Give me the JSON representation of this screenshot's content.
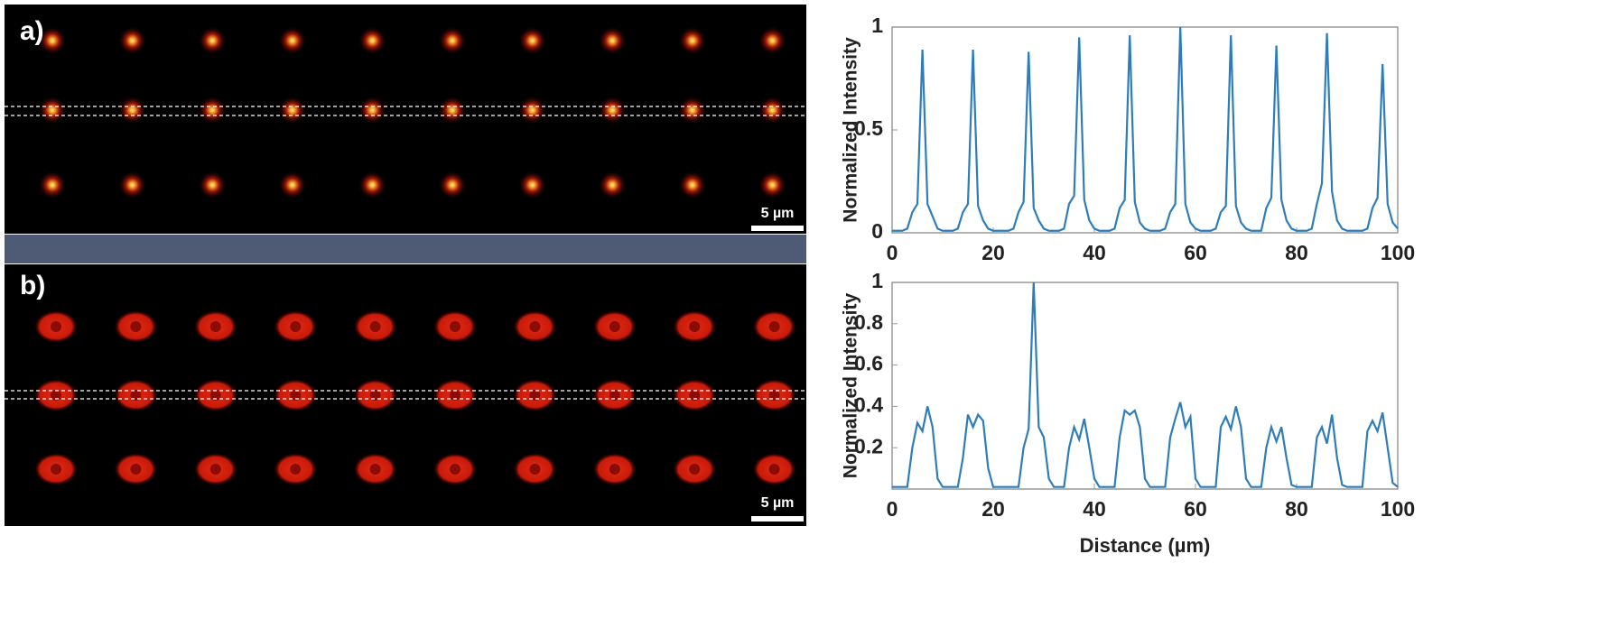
{
  "panels": [
    {
      "label": "a)",
      "scale_bar": "5 µm"
    },
    {
      "label": "b)",
      "scale_bar": "5 µm"
    }
  ],
  "chart_data": [
    {
      "type": "line",
      "ylabel": "Normalized Intensity",
      "color": "#2f7db8",
      "xlim": [
        0,
        100
      ],
      "xticks": [
        0,
        20,
        40,
        60,
        80,
        100
      ],
      "ylim": [
        0,
        1
      ],
      "yticks": [
        0,
        0.5,
        1
      ],
      "x": [
        0,
        1,
        2,
        3,
        4,
        5,
        6,
        7,
        8,
        9,
        10,
        11,
        12,
        13,
        14,
        15,
        16,
        17,
        18,
        19,
        20,
        21,
        22,
        23,
        24,
        25,
        26,
        27,
        28,
        29,
        30,
        31,
        32,
        33,
        34,
        35,
        36,
        37,
        38,
        39,
        40,
        41,
        42,
        43,
        44,
        45,
        46,
        47,
        48,
        49,
        50,
        51,
        52,
        53,
        54,
        55,
        56,
        57,
        58,
        59,
        60,
        61,
        62,
        63,
        64,
        65,
        66,
        67,
        68,
        69,
        70,
        71,
        72,
        73,
        74,
        75,
        76,
        77,
        78,
        79,
        80,
        81,
        82,
        83,
        84,
        85,
        86,
        87,
        88,
        89,
        90,
        91,
        92,
        93,
        94,
        95,
        96,
        97,
        98,
        99,
        100
      ],
      "values": [
        0.01,
        0.01,
        0.01,
        0.02,
        0.1,
        0.14,
        0.89,
        0.14,
        0.08,
        0.02,
        0.01,
        0.01,
        0.01,
        0.02,
        0.1,
        0.14,
        0.89,
        0.13,
        0.06,
        0.02,
        0.01,
        0.01,
        0.01,
        0.01,
        0.02,
        0.1,
        0.15,
        0.88,
        0.12,
        0.06,
        0.02,
        0.01,
        0.01,
        0.01,
        0.02,
        0.14,
        0.18,
        0.95,
        0.16,
        0.06,
        0.02,
        0.01,
        0.01,
        0.01,
        0.02,
        0.12,
        0.16,
        0.96,
        0.15,
        0.05,
        0.02,
        0.01,
        0.01,
        0.01,
        0.02,
        0.1,
        0.14,
        1,
        0.14,
        0.05,
        0.02,
        0.01,
        0.01,
        0.01,
        0.02,
        0.1,
        0.13,
        0.96,
        0.13,
        0.05,
        0.02,
        0.01,
        0.01,
        0.01,
        0.12,
        0.17,
        0.91,
        0.16,
        0.06,
        0.02,
        0.01,
        0.01,
        0.01,
        0.02,
        0.14,
        0.24,
        0.97,
        0.2,
        0.06,
        0.02,
        0.01,
        0.01,
        0.01,
        0.01,
        0.02,
        0.12,
        0.17,
        0.82,
        0.14,
        0.05,
        0.02
      ]
    },
    {
      "type": "line",
      "ylabel": "Normalized Intensity",
      "xlabel": "Distance (µm)",
      "color": "#2f7db8",
      "xlim": [
        0,
        100
      ],
      "xticks": [
        0,
        20,
        40,
        60,
        80,
        100
      ],
      "ylim": [
        0,
        1
      ],
      "yticks": [
        0.2,
        0.4,
        0.6,
        0.8,
        1
      ],
      "x": [
        0,
        1,
        2,
        3,
        4,
        5,
        6,
        7,
        8,
        9,
        10,
        11,
        12,
        13,
        14,
        15,
        16,
        17,
        18,
        19,
        20,
        21,
        22,
        23,
        24,
        25,
        26,
        27,
        28,
        29,
        30,
        31,
        32,
        33,
        34,
        35,
        36,
        37,
        38,
        39,
        40,
        41,
        42,
        43,
        44,
        45,
        46,
        47,
        48,
        49,
        50,
        51,
        52,
        53,
        54,
        55,
        56,
        57,
        58,
        59,
        60,
        61,
        62,
        63,
        64,
        65,
        66,
        67,
        68,
        69,
        70,
        71,
        72,
        73,
        74,
        75,
        76,
        77,
        78,
        79,
        80,
        81,
        82,
        83,
        84,
        85,
        86,
        87,
        88,
        89,
        90,
        91,
        92,
        93,
        94,
        95,
        96,
        97,
        98,
        99,
        100
      ],
      "values": [
        0.01,
        0.01,
        0.01,
        0.01,
        0.2,
        0.32,
        0.28,
        0.4,
        0.3,
        0.05,
        0.01,
        0.01,
        0.01,
        0.01,
        0.15,
        0.36,
        0.3,
        0.36,
        0.33,
        0.1,
        0.01,
        0.01,
        0.01,
        0.01,
        0.01,
        0.01,
        0.2,
        0.29,
        1,
        0.3,
        0.25,
        0.05,
        0.01,
        0.01,
        0.01,
        0.2,
        0.3,
        0.24,
        0.34,
        0.2,
        0.05,
        0.01,
        0.01,
        0.01,
        0.01,
        0.25,
        0.38,
        0.36,
        0.38,
        0.3,
        0.05,
        0.01,
        0.01,
        0.01,
        0.01,
        0.25,
        0.34,
        0.42,
        0.3,
        0.35,
        0.05,
        0.01,
        0.01,
        0.01,
        0.01,
        0.3,
        0.35,
        0.29,
        0.4,
        0.3,
        0.05,
        0.01,
        0.01,
        0.01,
        0.2,
        0.3,
        0.23,
        0.3,
        0.15,
        0.02,
        0.01,
        0.01,
        0.01,
        0.01,
        0.25,
        0.3,
        0.22,
        0.36,
        0.15,
        0.02,
        0.01,
        0.01,
        0.01,
        0.01,
        0.28,
        0.33,
        0.28,
        0.37,
        0.2,
        0.03,
        0.01
      ]
    }
  ]
}
